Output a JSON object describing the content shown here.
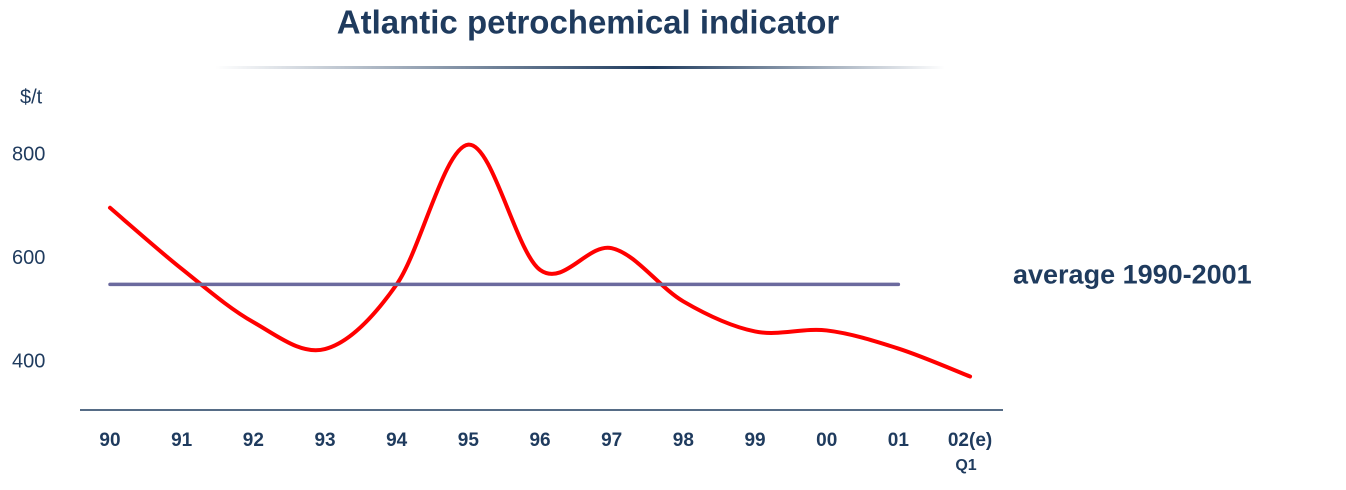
{
  "chart_data": {
    "type": "line",
    "title": "Atlantic petrochemical indicator",
    "y_label": "$/t",
    "categories": [
      "90",
      "91",
      "92",
      "93",
      "94",
      "95",
      "96",
      "97",
      "98",
      "99",
      "00",
      "01",
      "02(e)"
    ],
    "category_note": "Q1",
    "series": [
      {
        "color": "#ff0000",
        "values": [
          698,
          580,
          477,
          425,
          550,
          820,
          578,
          620,
          517,
          459,
          461,
          426,
          372
        ]
      },
      {
        "name": "average 1990-2001",
        "color": "#6b6a9e",
        "values": [
          550,
          550,
          550,
          550,
          550,
          550,
          550,
          550,
          550,
          550,
          550,
          550,
          null
        ]
      }
    ],
    "ylim": [
      300,
      900
    ],
    "yticks": [
      400,
      600,
      800
    ],
    "grid": false
  }
}
